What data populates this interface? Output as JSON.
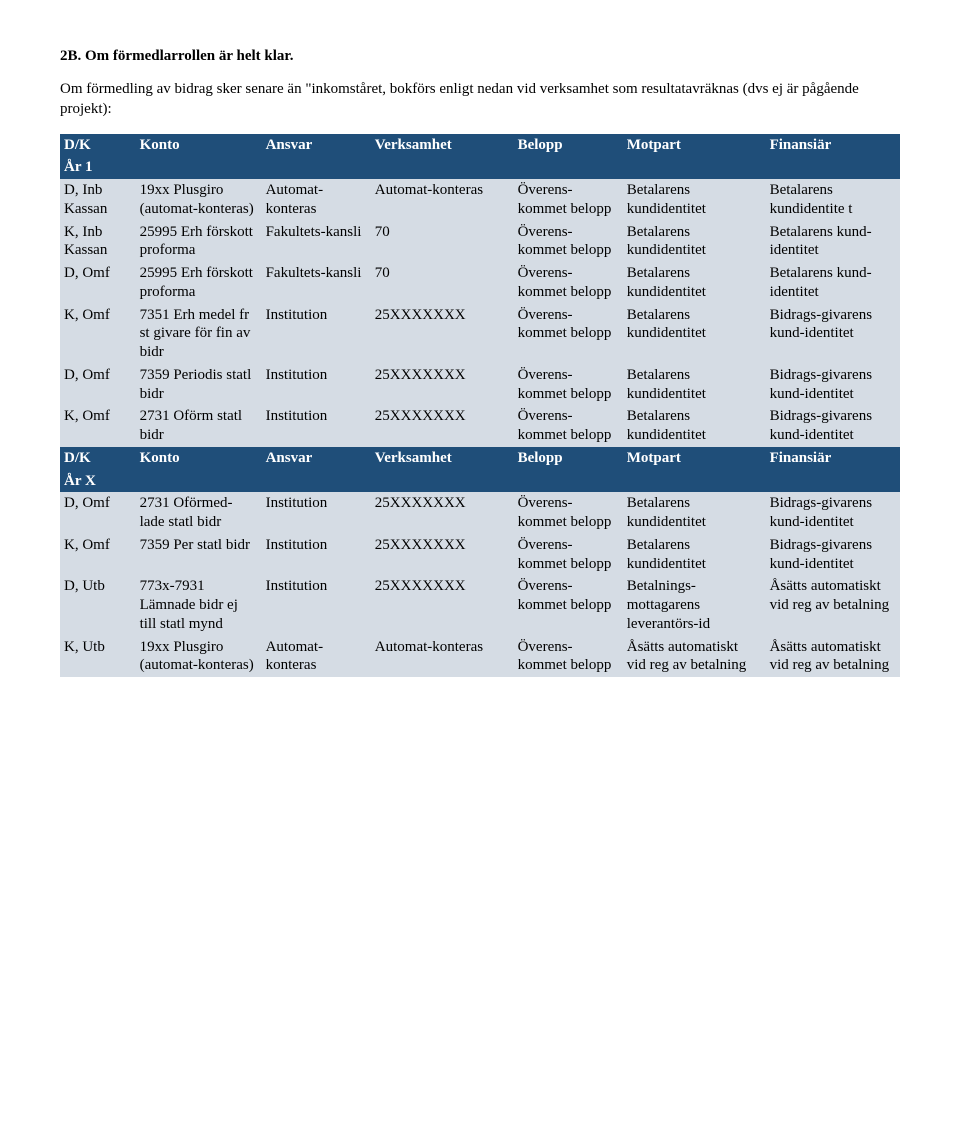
{
  "heading": "2B. Om förmedlarrollen är helt klar.",
  "intro": "Om förmedling av bidrag sker senare än \"inkomståret, bokförs enligt nedan vid verksamhet som resultatavräknas (dvs ej är pågående projekt):",
  "colors": {
    "header_bg": "#1f4e79",
    "header_fg": "#ffffff",
    "row_bg": "#d5dce4",
    "text": "#000000",
    "page_bg": "#ffffff"
  },
  "columns": [
    "D/K",
    "Konto",
    "Ansvar",
    "Verksamhet",
    "Belopp",
    "Motpart",
    "Finansiär"
  ],
  "year1_label": "År 1",
  "yearX_label": "År X",
  "section1_rows": [
    {
      "dk": "D, Inb Kassan",
      "konto": "19xx Plusgiro (automat-konteras)",
      "ansvar": "Automat-konteras",
      "verk": "Automat-konteras",
      "belopp": "Överens-kommet belopp",
      "motpart": "Betalarens kundidentitet",
      "fin": "Betalarens kundidentite t"
    },
    {
      "dk": "K, Inb Kassan",
      "konto": "25995 Erh förskott proforma",
      "ansvar": "Fakultets-kansli",
      "verk": "70",
      "belopp": "Överens-kommet belopp",
      "motpart": "Betalarens kundidentitet",
      "fin": "Betalarens kund-identitet"
    },
    {
      "dk": "D, Omf",
      "konto": "25995 Erh förskott proforma",
      "ansvar": "Fakultets-kansli",
      "verk": "70",
      "belopp": "Överens-kommet belopp",
      "motpart": "Betalarens kundidentitet",
      "fin": "Betalarens kund-identitet"
    },
    {
      "dk": "K, Omf",
      "konto": "7351 Erh medel fr st givare för fin av bidr",
      "ansvar": "Institution",
      "verk": "25XXXXXXX",
      "belopp": "Överens-kommet belopp",
      "motpart": "Betalarens kundidentitet",
      "fin": "Bidrags-givarens kund-identitet"
    },
    {
      "dk": "D, Omf",
      "konto": "7359 Periodis statl bidr",
      "ansvar": "Institution",
      "verk": "25XXXXXXX",
      "belopp": "Överens-kommet belopp",
      "motpart": "Betalarens kundidentitet",
      "fin": "Bidrags-givarens kund-identitet"
    },
    {
      "dk": "K, Omf",
      "konto": "2731 Oförm statl bidr",
      "ansvar": "Institution",
      "verk": "25XXXXXXX",
      "belopp": "Överens-kommet belopp",
      "motpart": "Betalarens kundidentitet",
      "fin": "Bidrags-givarens kund-identitet"
    }
  ],
  "section2_rows": [
    {
      "dk": "D, Omf",
      "konto": "2731 Oförmed-lade statl bidr",
      "ansvar": "Institution",
      "verk": "25XXXXXXX",
      "belopp": "Överens-kommet belopp",
      "motpart": "Betalarens kundidentitet",
      "fin": "Bidrags-givarens kund-identitet"
    },
    {
      "dk": "K, Omf",
      "konto": "7359 Per statl bidr",
      "ansvar": "Institution",
      "verk": "25XXXXXXX",
      "belopp": "Överens-kommet belopp",
      "motpart": "Betalarens kundidentitet",
      "fin": "Bidrags-givarens kund-identitet"
    },
    {
      "dk": "D, Utb",
      "konto": "773x-7931 Lämnade bidr ej till statl mynd",
      "ansvar": "Institution",
      "verk": "25XXXXXXX",
      "belopp": "Överens-kommet belopp",
      "motpart": "Betalnings-mottagarens leverantörs-id",
      "fin": "Åsätts automatiskt vid reg av betalning"
    },
    {
      "dk": "K, Utb",
      "konto": "19xx Plusgiro (automat-konteras)",
      "ansvar": "Automat-konteras",
      "verk": "Automat-konteras",
      "belopp": "Överens-kommet belopp",
      "motpart": "Åsätts automatiskt vid reg av betalning",
      "fin": "Åsätts automatiskt vid reg av betalning"
    }
  ]
}
